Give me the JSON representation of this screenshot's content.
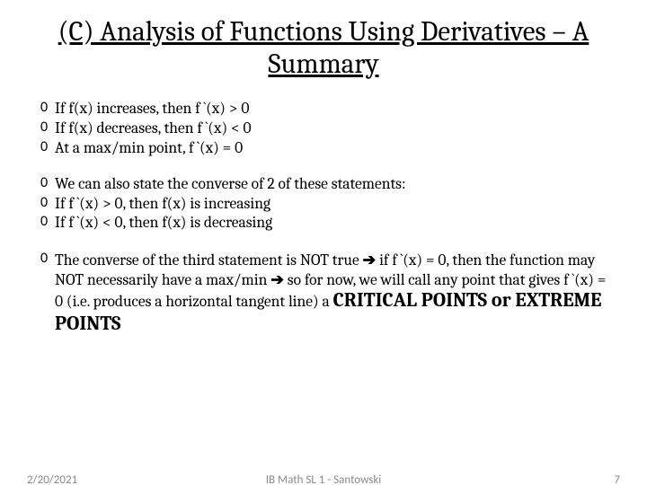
{
  "title": "(C) Analysis of Functions Using Derivatives – A Summary",
  "bullet_marker": "0",
  "group1": {
    "b1": "If f(x) increases, then f `(x) > 0",
    "b2": "If f(x) decreases, then f `(x) < 0",
    "b3": "At a max/min point, f `(x) = 0"
  },
  "group2": {
    "b1": "We can also state the converse of 2 of these statements:",
    "b2": "If f `(x) > 0, then f(x) is increasing",
    "b3": "If f `(x) < 0, then f(x) is decreasing"
  },
  "group3": {
    "pre1": "The converse of the third statement is NOT true ",
    "arrow1": "➔",
    "mid1": " if f `(x) = 0, then the function may NOT necessarily have a max/min ",
    "arrow2": "➔",
    "mid2": " so for now, we will call any point that gives f `(x) = 0 (i.e. produces a horizontal tangent line) a ",
    "emph": "CRITICAL POINTS or EXTREME POINTS"
  },
  "footer": {
    "date": "2/20/2021",
    "center": "IB Math SL 1 - Santowski",
    "page": "7"
  },
  "colors": {
    "text": "#000000",
    "footer": "#8a8a8a",
    "background": "#ffffff"
  }
}
